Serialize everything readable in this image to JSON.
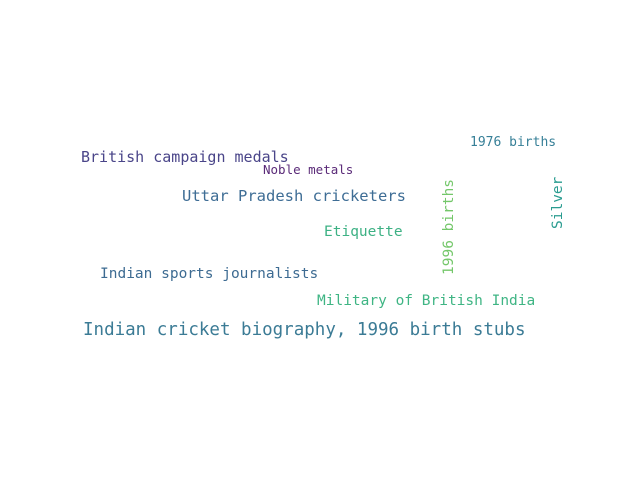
{
  "words": [
    {
      "id": "w1",
      "text": "Indian cricket biography, 1996 birth stubs",
      "color": "#3b7b95"
    },
    {
      "id": "w2",
      "text": "British campaign medals",
      "color": "#4a4589"
    },
    {
      "id": "w3",
      "text": "Noble metals",
      "color": "#5a2a78"
    },
    {
      "id": "w4",
      "text": "Uttar Pradesh cricketers",
      "color": "#3e6d95"
    },
    {
      "id": "w5",
      "text": "Etiquette",
      "color": "#3db184"
    },
    {
      "id": "w6",
      "text": "Indian sports journalists",
      "color": "#3d6b92"
    },
    {
      "id": "w7",
      "text": "Military of British India",
      "color": "#3fb584"
    },
    {
      "id": "w8",
      "text": "1976 births",
      "color": "#367f97"
    },
    {
      "id": "w9",
      "text": "1996 births",
      "color": "#74c76a"
    },
    {
      "id": "w10",
      "text": "Silver",
      "color": "#2a9c90"
    }
  ]
}
